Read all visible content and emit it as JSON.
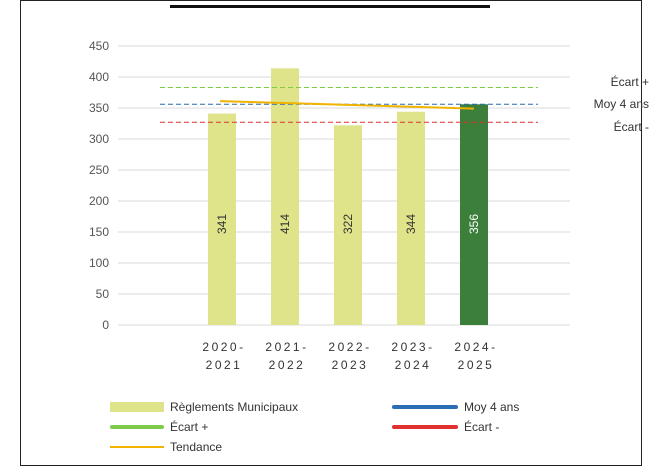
{
  "chart_data": {
    "type": "bar",
    "title": "",
    "xlabel": "",
    "ylabel": "",
    "ylim": [
      0,
      450
    ],
    "yticks": [
      0,
      50,
      100,
      150,
      200,
      250,
      300,
      350,
      400,
      450
    ],
    "grid": true,
    "legend_position": "bottom",
    "categories": [
      {
        "line1": "2020-",
        "line2": "2021"
      },
      {
        "line1": "2021-",
        "line2": "2022"
      },
      {
        "line1": "2022-",
        "line2": "2023"
      },
      {
        "line1": "2023-",
        "line2": "2024"
      },
      {
        "line1": "2024-",
        "line2": "2025"
      }
    ],
    "series": [
      {
        "name": "Règlements Municipaux",
        "type": "bar",
        "values": [
          341,
          414,
          322,
          344,
          356
        ],
        "data_labels": [
          "341",
          "414",
          "322",
          "344",
          "356"
        ],
        "color": "#dfe38a",
        "highlight_color": "#3b7f3b",
        "highlight_index": 4
      },
      {
        "name": "Moy 4 ans",
        "type": "reference",
        "value": 356,
        "color": "#2a6db5",
        "label": "Moy 4 ans"
      },
      {
        "name": "Écart +",
        "type": "reference",
        "value": 383,
        "color": "#7ecb4a",
        "label": "Écart +"
      },
      {
        "name": "Écart -",
        "type": "reference",
        "value": 327,
        "color": "#e03030",
        "label": "Écart -"
      },
      {
        "name": "Tendance",
        "type": "line",
        "x": [
          0,
          1,
          2,
          3,
          4
        ],
        "values": [
          361,
          358,
          355,
          352,
          349
        ],
        "color": "#f0b400"
      }
    ],
    "legend": [
      {
        "label": "Règlements Municipaux",
        "kind": "bar",
        "color": "#dfe38a"
      },
      {
        "label": "Moy 4 ans",
        "kind": "line",
        "color": "#2a6db5"
      },
      {
        "label": "Écart +",
        "kind": "line",
        "color": "#7ecb4a"
      },
      {
        "label": "Écart -",
        "kind": "line",
        "color": "#e03030"
      },
      {
        "label": "Tendance",
        "kind": "thinline",
        "color": "#f0b400"
      }
    ]
  }
}
